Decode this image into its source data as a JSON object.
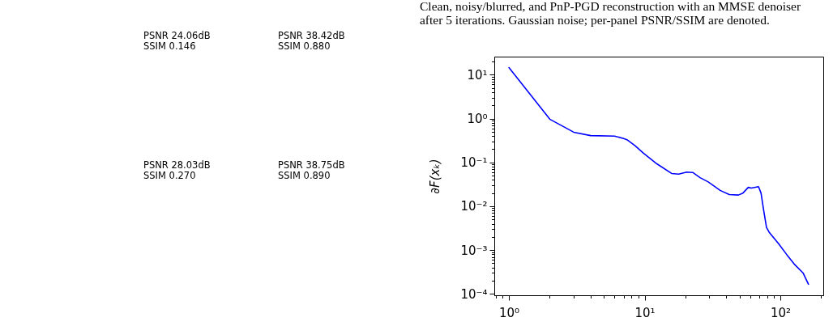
{
  "chart_data": [
    {
      "type": "other",
      "annotations": [
        "PSNR 24.06dB",
        "SSIM 0.146",
        "PSNR 38.42dB",
        "SSIM 0.880",
        "PSNR 28.03dB",
        "SSIM 0.270",
        "PSNR 38.75dB",
        "SSIM 0.890"
      ]
    },
    {
      "type": "line",
      "annotations": [
        "Clean, noisy/blurred, and PnP-PGD reconstruction with an MMSE denoiser",
        "after 5 iterations. Gaussian noise; per-panel PSNR/SSIM are denoted."
      ],
      "ylabel": "∂F(xₖ)",
      "log": "xy",
      "xlim": [
        0.78,
        207
      ],
      "ylim": [
        9.3e-05,
        26
      ],
      "xticks": [
        {
          "value": 0.8,
          "label": null
        },
        {
          "value": 0.9,
          "label": null
        },
        {
          "value": 1,
          "label": "10⁰"
        },
        {
          "value": 2,
          "label": null
        },
        {
          "value": 3,
          "label": null
        },
        {
          "value": 4,
          "label": null
        },
        {
          "value": 5,
          "label": null
        },
        {
          "value": 6,
          "label": null
        },
        {
          "value": 7,
          "label": null
        },
        {
          "value": 8,
          "label": null
        },
        {
          "value": 9,
          "label": null
        },
        {
          "value": 10,
          "label": "10¹"
        },
        {
          "value": 20,
          "label": null
        },
        {
          "value": 30,
          "label": null
        },
        {
          "value": 40,
          "label": null
        },
        {
          "value": 50,
          "label": null
        },
        {
          "value": 60,
          "label": null
        },
        {
          "value": 70,
          "label": null
        },
        {
          "value": 80,
          "label": null
        },
        {
          "value": 90,
          "label": null
        },
        {
          "value": 100,
          "label": "10²"
        },
        {
          "value": 200,
          "label": null
        }
      ],
      "yticks": [
        {
          "value": 0.0001,
          "label": "10⁻⁴"
        },
        {
          "value": 0.0002,
          "label": null
        },
        {
          "value": 0.0003,
          "label": null
        },
        {
          "value": 0.0004,
          "label": null
        },
        {
          "value": 0.0005,
          "label": null
        },
        {
          "value": 0.0006,
          "label": null
        },
        {
          "value": 0.0007,
          "label": null
        },
        {
          "value": 0.0008,
          "label": null
        },
        {
          "value": 0.0009,
          "label": null
        },
        {
          "value": 0.001,
          "label": "10⁻³"
        },
        {
          "value": 0.002,
          "label": null
        },
        {
          "value": 0.003,
          "label": null
        },
        {
          "value": 0.004,
          "label": null
        },
        {
          "value": 0.005,
          "label": null
        },
        {
          "value": 0.006,
          "label": null
        },
        {
          "value": 0.007,
          "label": null
        },
        {
          "value": 0.008,
          "label": null
        },
        {
          "value": 0.009,
          "label": null
        },
        {
          "value": 0.01,
          "label": "10⁻²"
        },
        {
          "value": 0.02,
          "label": null
        },
        {
          "value": 0.03,
          "label": null
        },
        {
          "value": 0.04,
          "label": null
        },
        {
          "value": 0.05,
          "label": null
        },
        {
          "value": 0.06,
          "label": null
        },
        {
          "value": 0.07,
          "label": null
        },
        {
          "value": 0.08,
          "label": null
        },
        {
          "value": 0.09,
          "label": null
        },
        {
          "value": 0.1,
          "label": "10⁻¹"
        },
        {
          "value": 0.2,
          "label": null
        },
        {
          "value": 0.3,
          "label": null
        },
        {
          "value": 0.4,
          "label": null
        },
        {
          "value": 0.5,
          "label": null
        },
        {
          "value": 0.6,
          "label": null
        },
        {
          "value": 0.7,
          "label": null
        },
        {
          "value": 0.8,
          "label": null
        },
        {
          "value": 0.9,
          "label": null
        },
        {
          "value": 1,
          "label": "10⁰"
        },
        {
          "value": 2,
          "label": null
        },
        {
          "value": 3,
          "label": null
        },
        {
          "value": 4,
          "label": null
        },
        {
          "value": 5,
          "label": null
        },
        {
          "value": 6,
          "label": null
        },
        {
          "value": 7,
          "label": null
        },
        {
          "value": 8,
          "label": null
        },
        {
          "value": 9,
          "label": null
        },
        {
          "value": 10,
          "label": "10¹"
        },
        {
          "value": 20,
          "label": null
        }
      ],
      "x": [
        1,
        2,
        3,
        4,
        6,
        7,
        7.4,
        8.5,
        9.8,
        12.3,
        15.8,
        17.8,
        20.4,
        22.6,
        25.6,
        29.4,
        36,
        42,
        49,
        53,
        58,
        61,
        69,
        72,
        75,
        79,
        83,
        97,
        111,
        128,
        147,
        153,
        161
      ],
      "series": [
        {
          "color": "#0000ff",
          "values": [
            14.6,
            0.97,
            0.49,
            0.41,
            0.4,
            0.35,
            0.33,
            0.24,
            0.163,
            0.093,
            0.056,
            0.054,
            0.06,
            0.059,
            0.045,
            0.036,
            0.023,
            0.0185,
            0.018,
            0.02,
            0.027,
            0.026,
            0.028,
            0.02,
            0.0087,
            0.0033,
            0.0025,
            0.0014,
            0.0008,
            0.00046,
            0.0003,
            0.00023,
            0.000166
          ]
        }
      ]
    }
  ]
}
